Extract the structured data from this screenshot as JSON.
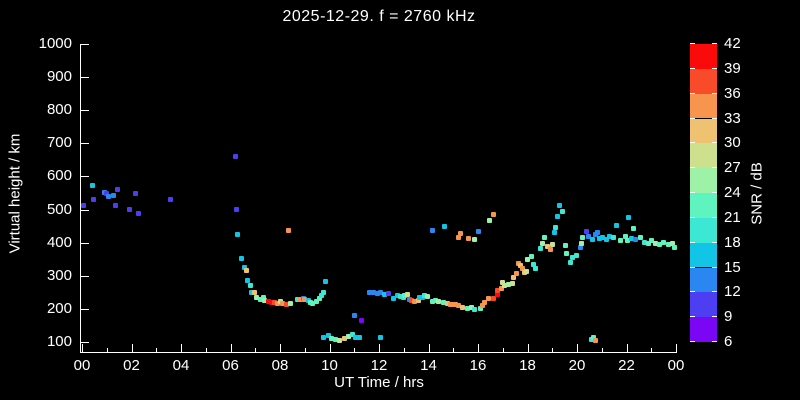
{
  "title": "2025-12-29. f = 2760 kHz",
  "chart_data": {
    "type": "scatter",
    "title": "2025-12-29. f = 2760 kHz",
    "xlabel": "UT Time / hrs",
    "ylabel": "Virtual height / km",
    "xlim": [
      0,
      24
    ],
    "ylim": [
      100,
      1000
    ],
    "background": "#000000",
    "grid": false,
    "x_ticks": [
      {
        "value": 0,
        "label": "00"
      },
      {
        "value": 2,
        "label": "02"
      },
      {
        "value": 4,
        "label": "04"
      },
      {
        "value": 6,
        "label": "06"
      },
      {
        "value": 8,
        "label": "08"
      },
      {
        "value": 10,
        "label": "10"
      },
      {
        "value": 12,
        "label": "12"
      },
      {
        "value": 14,
        "label": "14"
      },
      {
        "value": 16,
        "label": "16"
      },
      {
        "value": 18,
        "label": "18"
      },
      {
        "value": 20,
        "label": "20"
      },
      {
        "value": 22,
        "label": "22"
      },
      {
        "value": 24,
        "label": "00"
      }
    ],
    "y_ticks": [
      100,
      200,
      300,
      400,
      500,
      600,
      700,
      800,
      900,
      1000
    ],
    "colorbar": {
      "label": "SNR / dB",
      "min": 6,
      "max": 42,
      "step": 3,
      "tick_labels": [
        6,
        9,
        12,
        15,
        18,
        21,
        24,
        27,
        30,
        33,
        36,
        39,
        42
      ],
      "colors_bottom_to_top": [
        "#7a06f5",
        "#4d3ef2",
        "#2a86f0",
        "#12c4e6",
        "#3ce8d3",
        "#5ff3c0",
        "#9ef2a8",
        "#cce08e",
        "#eec271",
        "#f7954f",
        "#f94a2a",
        "#fa0a0a"
      ]
    },
    "points_format": [
      "ut_hours",
      "virtual_height_km",
      "snr_db"
    ],
    "points": [
      [
        0.08,
        511,
        10
      ],
      [
        0.44,
        574,
        16
      ],
      [
        0.45,
        530,
        10
      ],
      [
        0.89,
        553,
        13
      ],
      [
        1.01,
        547,
        10
      ],
      [
        1.09,
        538,
        13
      ],
      [
        1.29,
        541,
        13
      ],
      [
        1.37,
        511,
        10
      ],
      [
        1.45,
        562,
        10
      ],
      [
        1.9,
        499,
        10
      ],
      [
        2.18,
        547,
        10
      ],
      [
        2.3,
        487,
        10
      ],
      [
        3.56,
        529,
        10
      ],
      [
        6.22,
        659,
        10
      ],
      [
        6.26,
        499,
        10
      ],
      [
        6.3,
        426,
        16
      ],
      [
        6.46,
        351,
        16
      ],
      [
        6.55,
        324,
        16
      ],
      [
        6.63,
        317,
        31
      ],
      [
        6.67,
        287,
        16
      ],
      [
        6.79,
        272,
        19
      ],
      [
        6.83,
        251,
        16
      ],
      [
        6.95,
        248,
        31
      ],
      [
        7.07,
        233,
        25
      ],
      [
        7.23,
        227,
        22
      ],
      [
        7.35,
        233,
        22
      ],
      [
        7.39,
        224,
        25
      ],
      [
        7.52,
        221,
        41
      ],
      [
        7.64,
        218,
        41
      ],
      [
        7.76,
        218,
        37
      ],
      [
        7.88,
        215,
        34
      ],
      [
        8.04,
        221,
        28
      ],
      [
        8.12,
        215,
        34
      ],
      [
        8.28,
        212,
        37
      ],
      [
        8.36,
        438,
        34
      ],
      [
        8.44,
        215,
        25
      ],
      [
        8.69,
        227,
        19
      ],
      [
        8.81,
        227,
        34
      ],
      [
        8.93,
        230,
        13
      ],
      [
        9.01,
        227,
        34
      ],
      [
        9.17,
        224,
        16
      ],
      [
        9.25,
        218,
        22
      ],
      [
        9.33,
        215,
        22
      ],
      [
        9.49,
        221,
        22
      ],
      [
        9.58,
        230,
        22
      ],
      [
        9.66,
        239,
        19
      ],
      [
        9.74,
        248,
        19
      ],
      [
        9.82,
        284,
        16
      ],
      [
        9.74,
        115,
        16
      ],
      [
        9.94,
        121,
        16
      ],
      [
        10.1,
        112,
        22
      ],
      [
        10.26,
        109,
        22
      ],
      [
        10.42,
        106,
        28
      ],
      [
        10.59,
        112,
        31
      ],
      [
        10.75,
        118,
        25
      ],
      [
        10.91,
        124,
        19
      ],
      [
        11.07,
        115,
        16
      ],
      [
        11.23,
        115,
        16
      ],
      [
        12.08,
        115,
        16
      ],
      [
        10.99,
        179,
        13
      ],
      [
        11.31,
        166,
        7
      ],
      [
        11.6,
        248,
        13
      ],
      [
        11.76,
        248,
        13
      ],
      [
        11.92,
        245,
        13
      ],
      [
        12.08,
        248,
        13
      ],
      [
        12.24,
        242,
        16
      ],
      [
        12.4,
        245,
        10
      ],
      [
        12.57,
        230,
        16
      ],
      [
        12.73,
        239,
        16
      ],
      [
        12.85,
        236,
        19
      ],
      [
        12.97,
        233,
        19
      ],
      [
        13.05,
        239,
        22
      ],
      [
        13.17,
        242,
        28
      ],
      [
        13.25,
        227,
        13
      ],
      [
        13.33,
        224,
        37
      ],
      [
        13.45,
        221,
        34
      ],
      [
        13.58,
        224,
        31
      ],
      [
        13.62,
        233,
        16
      ],
      [
        13.74,
        233,
        16
      ],
      [
        13.82,
        239,
        19
      ],
      [
        13.94,
        236,
        25
      ],
      [
        14.18,
        221,
        22
      ],
      [
        14.3,
        224,
        22
      ],
      [
        14.42,
        221,
        25
      ],
      [
        14.59,
        218,
        22
      ],
      [
        14.75,
        215,
        31
      ],
      [
        14.87,
        212,
        34
      ],
      [
        14.99,
        212,
        34
      ],
      [
        15.11,
        212,
        34
      ],
      [
        15.23,
        209,
        34
      ],
      [
        15.39,
        203,
        31
      ],
      [
        15.56,
        200,
        22
      ],
      [
        15.72,
        203,
        25
      ],
      [
        15.84,
        197,
        19
      ],
      [
        16.12,
        200,
        22
      ],
      [
        16.2,
        209,
        34
      ],
      [
        16.28,
        218,
        34
      ],
      [
        16.44,
        230,
        34
      ],
      [
        16.61,
        230,
        37
      ],
      [
        16.77,
        242,
        41
      ],
      [
        16.77,
        257,
        37
      ],
      [
        16.93,
        263,
        34
      ],
      [
        17.01,
        281,
        28
      ],
      [
        17.09,
        272,
        28
      ],
      [
        17.25,
        275,
        25
      ],
      [
        17.41,
        278,
        28
      ],
      [
        14.18,
        438,
        13
      ],
      [
        14.63,
        450,
        16
      ],
      [
        15.23,
        417,
        34
      ],
      [
        15.31,
        429,
        34
      ],
      [
        15.63,
        414,
        34
      ],
      [
        15.84,
        411,
        25
      ],
      [
        16.04,
        435,
        13
      ],
      [
        16.48,
        468,
        25
      ],
      [
        16.61,
        484,
        34
      ],
      [
        17.45,
        296,
        31
      ],
      [
        17.54,
        308,
        34
      ],
      [
        17.62,
        336,
        34
      ],
      [
        17.7,
        330,
        31
      ],
      [
        17.78,
        323,
        34
      ],
      [
        17.86,
        311,
        31
      ],
      [
        17.94,
        314,
        28
      ],
      [
        18.02,
        348,
        25
      ],
      [
        18.18,
        357,
        22
      ],
      [
        18.26,
        333,
        19
      ],
      [
        18.34,
        323,
        19
      ],
      [
        18.51,
        381,
        19
      ],
      [
        18.59,
        396,
        25
      ],
      [
        18.67,
        417,
        22
      ],
      [
        18.79,
        387,
        31
      ],
      [
        18.91,
        378,
        34
      ],
      [
        18.99,
        393,
        28
      ],
      [
        19.11,
        432,
        16
      ],
      [
        19.15,
        447,
        19
      ],
      [
        19.23,
        478,
        16
      ],
      [
        19.31,
        511,
        16
      ],
      [
        19.43,
        493,
        19
      ],
      [
        19.52,
        390,
        22
      ],
      [
        19.56,
        366,
        22
      ],
      [
        19.72,
        339,
        19
      ],
      [
        19.8,
        354,
        19
      ],
      [
        19.96,
        360,
        19
      ],
      [
        20.16,
        384,
        13
      ],
      [
        20.2,
        396,
        25
      ],
      [
        20.24,
        417,
        22
      ],
      [
        20.4,
        435,
        10
      ],
      [
        20.48,
        420,
        13
      ],
      [
        20.61,
        411,
        16
      ],
      [
        20.73,
        426,
        13
      ],
      [
        20.81,
        432,
        13
      ],
      [
        20.89,
        414,
        16
      ],
      [
        21.05,
        417,
        16
      ],
      [
        21.21,
        411,
        16
      ],
      [
        20.57,
        109,
        19
      ],
      [
        20.65,
        115,
        22
      ],
      [
        20.73,
        106,
        34
      ],
      [
        21.33,
        420,
        16
      ],
      [
        21.49,
        417,
        19
      ],
      [
        21.58,
        453,
        16
      ],
      [
        21.74,
        408,
        22
      ],
      [
        21.94,
        420,
        22
      ],
      [
        22.06,
        408,
        22
      ],
      [
        22.1,
        475,
        16
      ],
      [
        22.22,
        414,
        16
      ],
      [
        22.3,
        444,
        22
      ],
      [
        22.38,
        411,
        13
      ],
      [
        22.55,
        417,
        22
      ],
      [
        22.71,
        402,
        19
      ],
      [
        22.87,
        396,
        22
      ],
      [
        23.03,
        408,
        22
      ],
      [
        23.19,
        396,
        25
      ],
      [
        23.35,
        393,
        22
      ],
      [
        23.51,
        402,
        22
      ],
      [
        23.68,
        393,
        22
      ],
      [
        23.84,
        396,
        25
      ],
      [
        23.92,
        384,
        22
      ]
    ]
  }
}
